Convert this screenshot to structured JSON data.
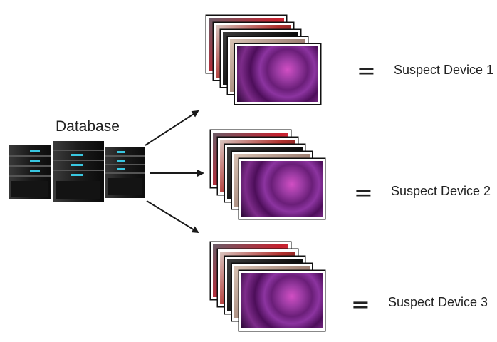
{
  "database": {
    "label": "Database",
    "servers": [
      "server-left",
      "server-middle",
      "server-right"
    ]
  },
  "devices": [
    {
      "equals": "=",
      "label": "Suspect Device 1"
    },
    {
      "equals": "=",
      "label": "Suspect Device 2"
    },
    {
      "equals": "=",
      "label": "Suspect Device 3"
    }
  ],
  "colors": {
    "arrow": "#1a1a1a",
    "server_body": "#1e1e1e",
    "server_led": "#39c6e0",
    "rose_purple": "#8a2d8c",
    "rose_red": "#c4202e"
  }
}
